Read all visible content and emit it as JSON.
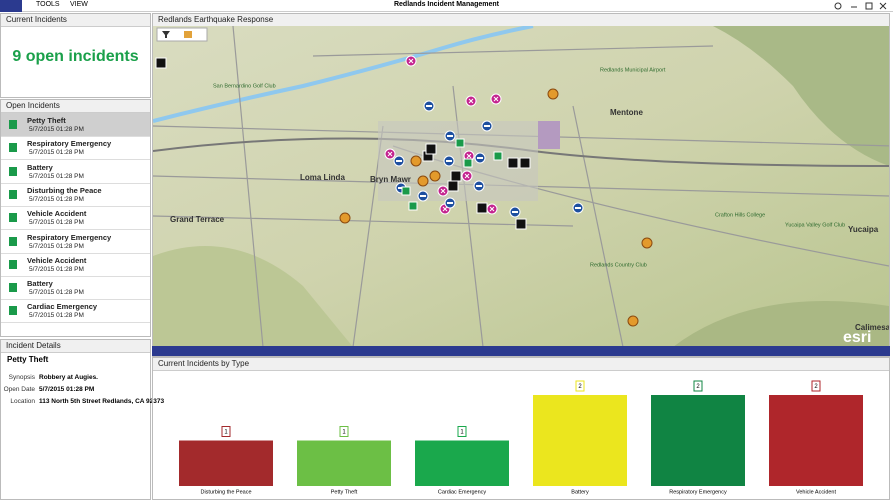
{
  "window": {
    "title": "Redlands Incident Management",
    "menu": [
      "TOOLS",
      "VIEW"
    ]
  },
  "current_incidents": {
    "header": "Current Incidents",
    "summary": "9 open incidents"
  },
  "open_incidents": {
    "header": "Open Incidents",
    "items": [
      {
        "name": "Petty Theft",
        "date": "5/7/2015 01:28 PM"
      },
      {
        "name": "Respiratory Emergency",
        "date": "5/7/2015 01:28 PM"
      },
      {
        "name": "Battery",
        "date": "5/7/2015 01:28 PM"
      },
      {
        "name": "Disturbing the Peace",
        "date": "5/7/2015 01:28 PM"
      },
      {
        "name": "Vehicle Accident",
        "date": "5/7/2015 01:28 PM"
      },
      {
        "name": "Respiratory Emergency",
        "date": "5/7/2015 01:28 PM"
      },
      {
        "name": "Vehicle Accident",
        "date": "5/7/2015 01:28 PM"
      },
      {
        "name": "Battery",
        "date": "5/7/2015 01:28 PM"
      },
      {
        "name": "Cardiac Emergency",
        "date": "5/7/2015 01:28 PM"
      }
    ]
  },
  "incident_details": {
    "header": "Incident Details",
    "title": "Petty Theft",
    "fields": [
      {
        "label": "Synopsis",
        "value": "Robbery at Augies."
      },
      {
        "label": "Open Date",
        "value": "5/7/2015 01:28 PM"
      },
      {
        "label": "Location",
        "value": "113 North 5th Street Redlands, CA 92373"
      }
    ]
  },
  "map": {
    "title": "Redlands Earthquake Response",
    "labels": [
      "Loma Linda",
      "Grand Terrace",
      "Mentone",
      "Yucaipa",
      "Calimesa",
      "Bryn Mawr",
      "San Bernardino Golf Club",
      "Redlands Municipal Airport",
      "Crafton Hills College",
      "Redlands Country Club",
      "Yucaipa Valley Golf Club"
    ],
    "attribution": "esri"
  },
  "chart_data": {
    "type": "bar",
    "title": "Current Incidents by Type",
    "categories": [
      "Disturbing the Peace",
      "Petty Theft",
      "Cardiac Emergency",
      "Battery",
      "Respiratory Emergency",
      "Vehicle Accident"
    ],
    "values": [
      1,
      1,
      1,
      2,
      2,
      2
    ],
    "colors": [
      "#a32a2c",
      "#6cbf45",
      "#1aa84c",
      "#ebe61e",
      "#108443",
      "#af262b"
    ]
  }
}
